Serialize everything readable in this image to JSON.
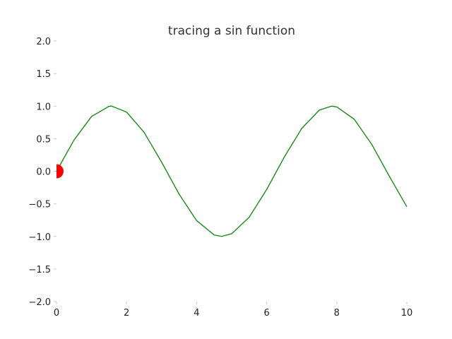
{
  "chart_data": {
    "type": "line",
    "title": "tracing a sin function",
    "xlabel": "",
    "ylabel": "",
    "xlim": [
      0,
      10
    ],
    "ylim": [
      -2.0,
      2.0
    ],
    "grid": false,
    "x_ticks": [
      0,
      2,
      4,
      6,
      8,
      10
    ],
    "x_tick_labels": [
      "0",
      "2",
      "4",
      "6",
      "8",
      "10"
    ],
    "y_ticks": [
      2.0,
      1.5,
      1.0,
      0.5,
      0.0,
      -0.5,
      -1.0,
      -1.5,
      -2.0
    ],
    "y_tick_labels": [
      "2.0",
      "1.5",
      "1.0",
      "0.5",
      "0.0",
      "−0.5",
      "−1.0",
      "−1.5",
      "−2.0"
    ],
    "series": [
      {
        "function": "sin(x)",
        "color": "#1a8a1a",
        "x": [
          0.0,
          0.5,
          1.0,
          1.5,
          1.5708,
          2.0,
          2.5,
          3.0,
          3.5,
          4.0,
          4.5,
          4.7124,
          5.0,
          5.5,
          6.0,
          6.5,
          7.0,
          7.5,
          7.854,
          8.0,
          8.5,
          9.0,
          9.5,
          10.0
        ],
        "y": [
          0.0,
          0.479,
          0.841,
          0.997,
          1.0,
          0.909,
          0.598,
          0.141,
          -0.351,
          -0.757,
          -0.978,
          -1.0,
          -0.959,
          -0.706,
          -0.279,
          0.215,
          0.657,
          0.938,
          1.0,
          0.989,
          0.798,
          0.412,
          -0.075,
          -0.544
        ]
      }
    ],
    "marker": {
      "x": 0.0,
      "y": 0.0,
      "color": "#ff0000"
    }
  }
}
